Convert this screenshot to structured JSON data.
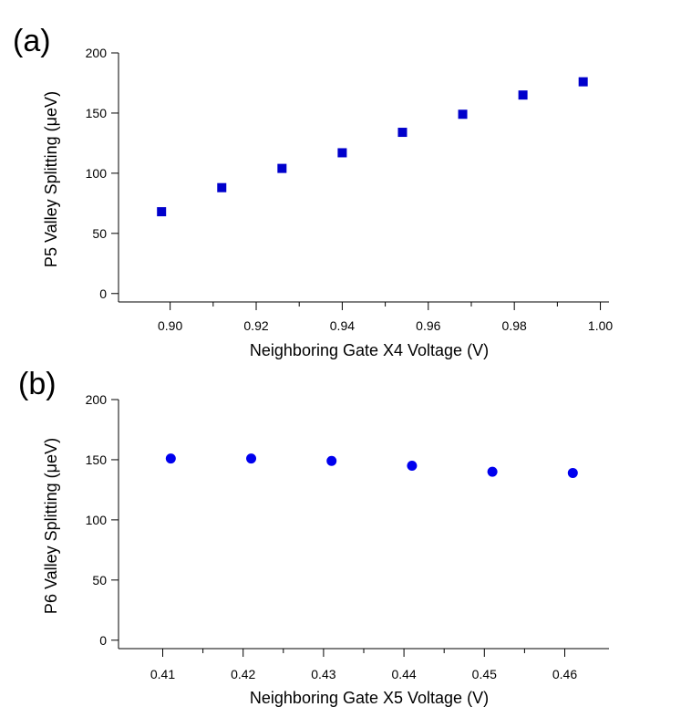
{
  "chart_data": [
    {
      "type": "scatter",
      "panel_label": "(a)",
      "xlabel": "Neighboring Gate X4 Voltage (V)",
      "ylabel": "P5 Valley Splitting (μeV)",
      "xlim": [
        0.888,
        1.002
      ],
      "ylim": [
        -7,
        200
      ],
      "x_ticks": [
        0.9,
        0.92,
        0.94,
        0.96,
        0.98,
        1.0
      ],
      "x_tick_labels": [
        "0.90",
        "0.92",
        "0.94",
        "0.96",
        "0.98",
        "1.00"
      ],
      "y_ticks": [
        0,
        50,
        100,
        150,
        200
      ],
      "y_tick_labels": [
        "0",
        "50",
        "100",
        "150",
        "200"
      ],
      "marker": "square",
      "color": "#0000cc",
      "grid": false,
      "series": [
        {
          "name": "P5",
          "x": [
            0.898,
            0.912,
            0.926,
            0.94,
            0.954,
            0.968,
            0.982,
            0.996
          ],
          "y": [
            68,
            88,
            104,
            117,
            134,
            149,
            165,
            176
          ]
        }
      ]
    },
    {
      "type": "scatter",
      "panel_label": "(b)",
      "xlabel": "Neighboring Gate X5 Voltage (V)",
      "ylabel": "P6 Valley Splitting (μeV)",
      "xlim": [
        0.4045,
        0.4655
      ],
      "ylim": [
        -7,
        200
      ],
      "x_ticks": [
        0.41,
        0.42,
        0.43,
        0.44,
        0.45,
        0.46
      ],
      "x_tick_labels": [
        "0.41",
        "0.42",
        "0.43",
        "0.44",
        "0.45",
        "0.46"
      ],
      "y_ticks": [
        0,
        50,
        100,
        150,
        200
      ],
      "y_tick_labels": [
        "0",
        "50",
        "100",
        "150",
        "200"
      ],
      "marker": "circle",
      "color": "#0000ee",
      "grid": false,
      "series": [
        {
          "name": "P6",
          "x": [
            0.411,
            0.421,
            0.431,
            0.441,
            0.451,
            0.461
          ],
          "y": [
            151,
            151,
            149,
            145,
            140,
            139
          ]
        }
      ]
    }
  ]
}
